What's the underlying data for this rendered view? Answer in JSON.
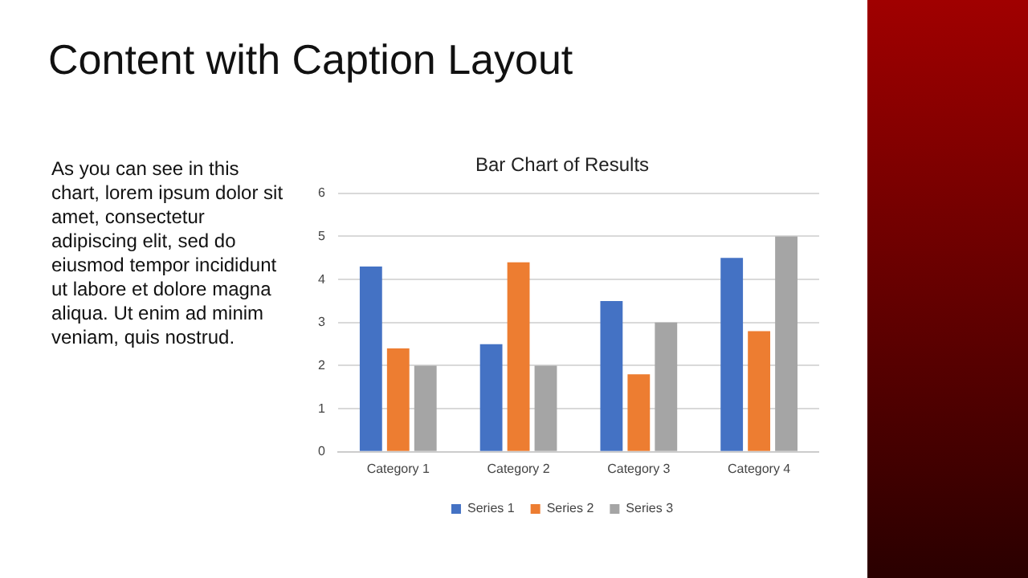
{
  "chart_data": {
    "type": "bar",
    "title": "Bar Chart of Results",
    "annotations": [
      "Content with Caption Layout",
      "As you can see in this chart, lorem ipsum dolor sit amet, consectetur adipiscing elit, sed do eiusmod tempor incididunt ut labore et dolore magna aliqua. Ut enim ad minim veniam, quis nostrud."
    ],
    "categories": [
      "Category 1",
      "Category 2",
      "Category 3",
      "Category 4"
    ],
    "series": [
      {
        "name": "Series 1",
        "color": "#4472c4",
        "values": [
          4.3,
          2.5,
          3.5,
          4.5
        ]
      },
      {
        "name": "Series 2",
        "color": "#ed7d31",
        "values": [
          2.4,
          4.4,
          1.8,
          2.8
        ]
      },
      {
        "name": "Series 3",
        "color": "#a5a5a5",
        "values": [
          2,
          2,
          3,
          5
        ]
      }
    ],
    "ylim": [
      0,
      6
    ],
    "yticks": [
      0,
      1,
      2,
      3,
      4,
      5,
      6
    ],
    "grid": "y",
    "legend": "bottom"
  }
}
